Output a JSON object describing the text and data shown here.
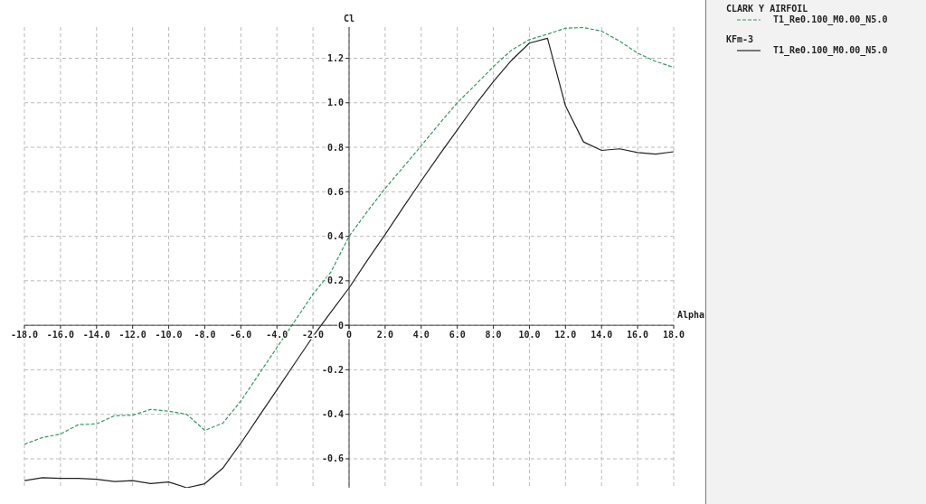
{
  "chart_data": {
    "type": "line",
    "xlabel": "Alpha",
    "ylabel": "Cl",
    "x": [
      -18,
      -17,
      -16,
      -15,
      -14,
      -13,
      -12,
      -11,
      -10,
      -9,
      -8,
      -7,
      -6,
      -5,
      -4,
      -3,
      -2,
      -1,
      0,
      1,
      2,
      3,
      4,
      5,
      6,
      7,
      8,
      9,
      10,
      11,
      12,
      13,
      14,
      15,
      16,
      17,
      18
    ],
    "series": [
      {
        "name": "CLARK Y AIRFOIL",
        "color": "#2e9a5e",
        "line_style": "dashed",
        "values": [
          -0.535,
          -0.504,
          -0.489,
          -0.446,
          -0.443,
          -0.406,
          -0.404,
          -0.378,
          -0.386,
          -0.4,
          -0.472,
          -0.44,
          -0.34,
          -0.22,
          -0.1,
          0.02,
          0.14,
          0.24,
          0.4,
          0.51,
          0.615,
          0.71,
          0.807,
          0.905,
          1.0,
          1.08,
          1.162,
          1.236,
          1.284,
          1.308,
          1.335,
          1.338,
          1.322,
          1.277,
          1.223,
          1.186,
          1.159
        ]
      },
      {
        "name": "KFm-3",
        "color": "#222222",
        "line_style": "solid",
        "values": [
          -0.698,
          -0.685,
          -0.688,
          -0.688,
          -0.692,
          -0.702,
          -0.698,
          -0.711,
          -0.704,
          -0.73,
          -0.712,
          -0.642,
          -0.53,
          -0.41,
          -0.29,
          -0.17,
          -0.05,
          0.06,
          0.168,
          0.29,
          0.408,
          0.53,
          0.649,
          0.765,
          0.878,
          0.99,
          1.095,
          1.19,
          1.268,
          1.29,
          0.986,
          0.824,
          0.786,
          0.793,
          0.776,
          0.769,
          0.78
        ]
      }
    ],
    "annotations": [
      "T1_Re0.100_M0.00_N5.0",
      "T1_Re0.100_M0.00_N5.0"
    ],
    "xlim": [
      -18,
      18
    ],
    "xticks": [
      {
        "value": -18,
        "label": "-18.0"
      },
      {
        "value": -16,
        "label": "-16.0"
      },
      {
        "value": -14,
        "label": "-14.0"
      },
      {
        "value": -12,
        "label": "-12.0"
      },
      {
        "value": -10,
        "label": "-10.0"
      },
      {
        "value": -8,
        "label": "-8.0"
      },
      {
        "value": -6,
        "label": "-6.0"
      },
      {
        "value": -4,
        "label": "-4.0"
      },
      {
        "value": -2,
        "label": "-2.0"
      },
      0,
      {
        "value": 2,
        "label": "2.0"
      },
      {
        "value": 4,
        "label": "4.0"
      },
      {
        "value": 6,
        "label": "6.0"
      },
      {
        "value": 8,
        "label": "8.0"
      },
      {
        "value": 10,
        "label": "10.0"
      },
      {
        "value": 12,
        "label": "12.0"
      },
      {
        "value": 14,
        "label": "14.0"
      },
      {
        "value": 16,
        "label": "16.0"
      },
      {
        "value": 18,
        "label": "18.0"
      }
    ],
    "ylim": [
      -0.73,
      1.34
    ],
    "yticks": [
      -0.6,
      -0.4,
      -0.2,
      0,
      0.2,
      0.4,
      0.6,
      0.8,
      {
        "value": 1,
        "label": "1.0"
      },
      1.2
    ],
    "grid": true,
    "legend": "right",
    "marker": "none"
  }
}
